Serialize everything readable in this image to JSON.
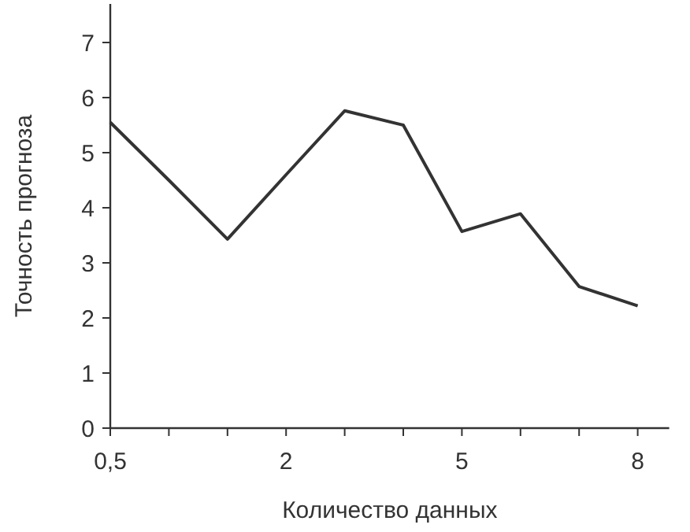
{
  "chart_data": {
    "type": "line",
    "xlabel": "Количество данных",
    "ylabel": "Точность прогноза",
    "categories": [
      "0,5",
      null,
      null,
      "2",
      null,
      null,
      "5",
      null,
      null,
      "8"
    ],
    "series": [
      {
        "color": "#333333",
        "values": [
          5.55,
          4.5,
          3.43,
          4.6,
          5.76,
          5.5,
          3.57,
          3.89,
          2.57,
          2.22
        ]
      }
    ],
    "ylim": [
      0,
      7.7
    ],
    "yticks": [
      0,
      1,
      2,
      3,
      4,
      5,
      6,
      7
    ],
    "grid": false,
    "marker": "none",
    "line_style": "solid"
  }
}
